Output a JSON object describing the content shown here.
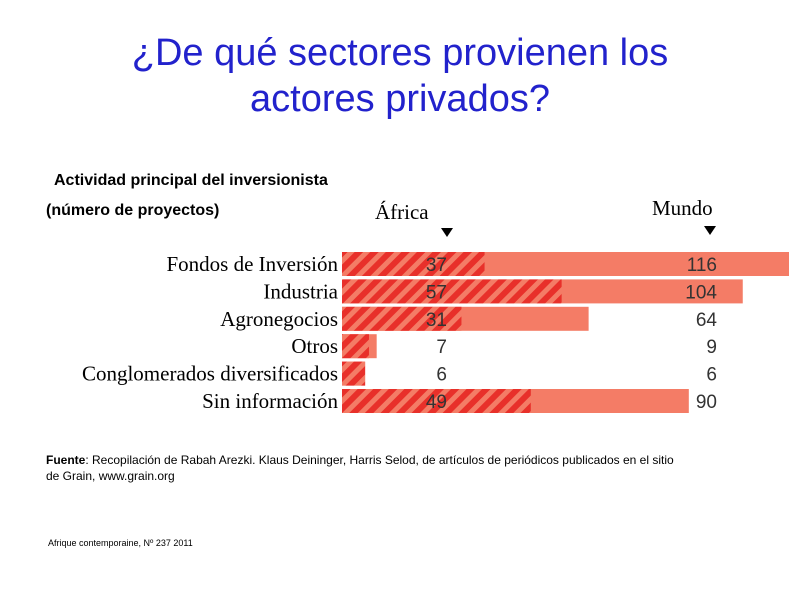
{
  "slide": {
    "title_line1": "¿De qué sectores provienen los",
    "title_line2": "actores privados?"
  },
  "chart_data": {
    "type": "bar",
    "title": "Actividad principal del inversionista",
    "subtitle": "(número de proyectos)",
    "categories": [
      "Fondos de Inversión",
      "Industria",
      "Agronegocios",
      "Otros",
      "Conglomerados diversificados",
      "Sin información"
    ],
    "series": [
      {
        "name": "África",
        "values": [
          37,
          57,
          31,
          7,
          6,
          49
        ],
        "color": "#e8302a",
        "pattern": "diagonal-stripes"
      },
      {
        "name": "Mundo",
        "values": [
          116,
          104,
          64,
          9,
          6,
          90
        ],
        "color": "#f47c66",
        "pattern": "solid"
      }
    ],
    "xlim": [
      0,
      116
    ],
    "grid": false,
    "legend_position": "top, above value columns"
  },
  "footer": {
    "source_label": "Fuente",
    "source_text": ": Recopilación de Rabah Arezki. Klaus Deininger, Harris Selod,  de artículos de periódicos publicados en el sitio de Grain, www.grain.org",
    "reference": "Afrique contemporaine, Nº 237 2011"
  }
}
